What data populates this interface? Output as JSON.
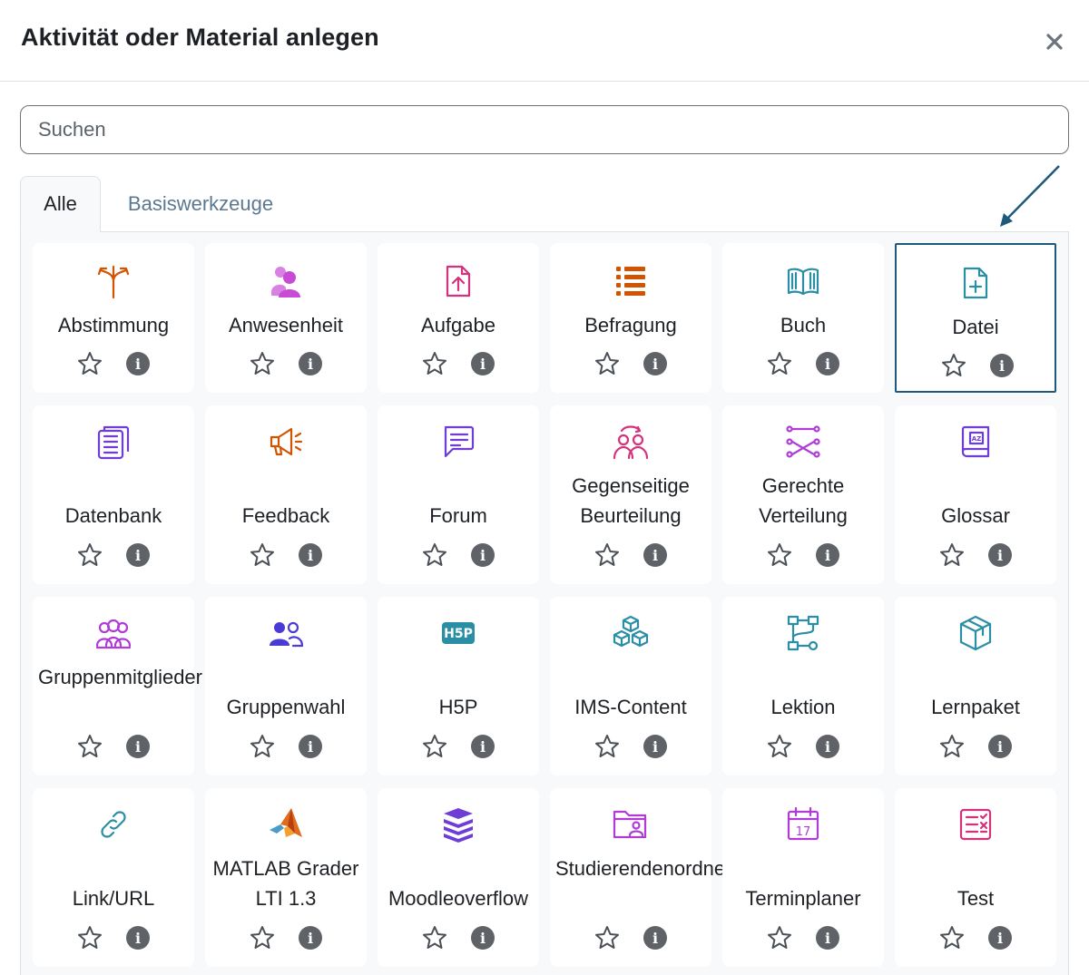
{
  "dialog": {
    "title": "Aktivität oder Material anlegen"
  },
  "search": {
    "placeholder": "Suchen"
  },
  "tabs": [
    {
      "label": "Alle"
    },
    {
      "label": "Basiswerkzeuge"
    }
  ],
  "items": [
    {
      "label": "Abstimmung",
      "icon": "choice-icon",
      "color": "#d35400"
    },
    {
      "label": "Anwesenheit",
      "icon": "attendance-icon",
      "color": "#c84bd6"
    },
    {
      "label": "Aufgabe",
      "icon": "assignment-icon",
      "color": "#d6317c"
    },
    {
      "label": "Befragung",
      "icon": "survey-icon",
      "color": "#d35400"
    },
    {
      "label": "Buch",
      "icon": "book-icon",
      "color": "#2a8ea5"
    },
    {
      "label": "Datei",
      "icon": "file-icon",
      "color": "#2a8ea5",
      "selected": true
    },
    {
      "label": "Datenbank",
      "icon": "database-icon",
      "color": "#6f3cd6"
    },
    {
      "label": "Feedback",
      "icon": "megaphone-icon",
      "color": "#d35400"
    },
    {
      "label": "Forum",
      "icon": "forum-icon",
      "color": "#6f3cd6"
    },
    {
      "label": "Gegenseitige Beurteilung",
      "icon": "workshop-icon",
      "color": "#d6317c"
    },
    {
      "label": "Gerechte Verteilung",
      "icon": "ratingallocate-icon",
      "color": "#b03bd6"
    },
    {
      "label": "Glossar",
      "icon": "glossary-icon",
      "color": "#6f3cd6"
    },
    {
      "label": "Gruppenmitglieder",
      "icon": "group-members-icon",
      "color": "#b03bd6"
    },
    {
      "label": "Gruppenwahl",
      "icon": "group-choice-icon",
      "color": "#4a3bd6"
    },
    {
      "label": "H5P",
      "icon": "h5p-icon",
      "color": "#2a8ea5"
    },
    {
      "label": "IMS-Content",
      "icon": "ims-content-icon",
      "color": "#2a8ea5"
    },
    {
      "label": "Lektion",
      "icon": "lesson-icon",
      "color": "#2a8ea5"
    },
    {
      "label": "Lernpaket",
      "icon": "package-icon",
      "color": "#2a8ea5"
    },
    {
      "label": "Link/URL",
      "icon": "link-icon",
      "color": "#2a8ea5"
    },
    {
      "label": "MATLAB Grader LTI 1.3",
      "icon": "matlab-icon",
      "color": "#e06c1f"
    },
    {
      "label": "Moodleoverflow",
      "icon": "moodleoverflow-icon",
      "color": "#6f3cd6"
    },
    {
      "label": "Studierendenordner",
      "icon": "student-folder-icon",
      "color": "#b03bd6"
    },
    {
      "label": "Terminplaner",
      "icon": "calendar-icon",
      "color": "#b03bd6"
    },
    {
      "label": "Test",
      "icon": "quiz-icon",
      "color": "#d6317c"
    }
  ]
}
